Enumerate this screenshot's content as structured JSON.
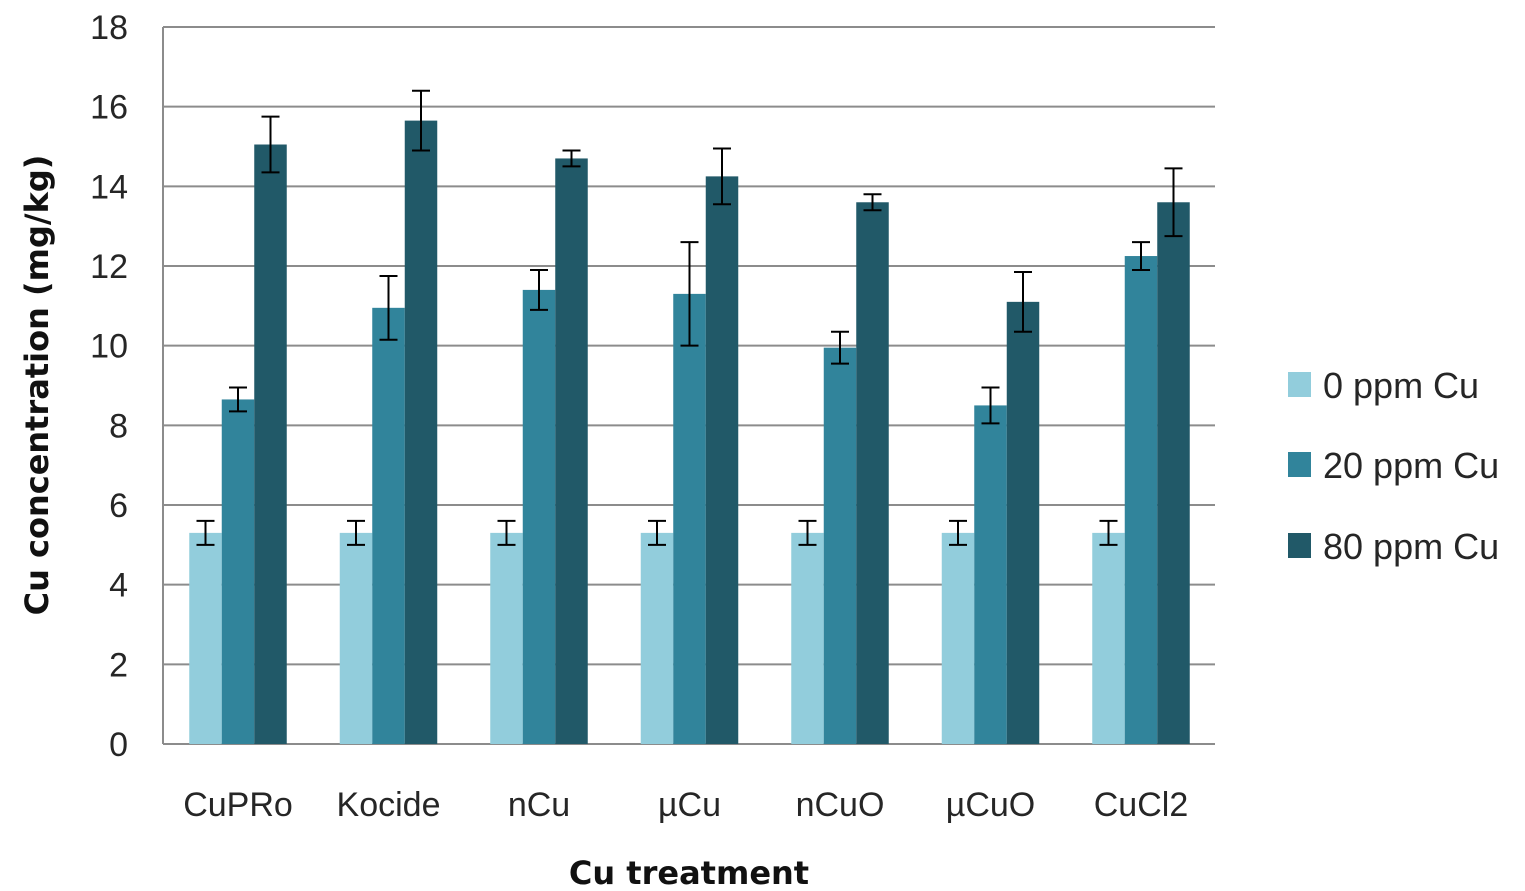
{
  "chart_data": {
    "type": "bar",
    "title": "",
    "xlabel": "Cu treatment",
    "ylabel": "Cu concentration (mg/kg)",
    "ylim": [
      0,
      18
    ],
    "yticks": [
      0,
      2,
      4,
      6,
      8,
      10,
      12,
      14,
      16,
      18
    ],
    "grid": true,
    "legend_position": "right",
    "categories": [
      "CuPRo",
      "Kocide",
      "nCu",
      "µCu",
      "nCuO",
      "µCuO",
      "CuCl2"
    ],
    "series": [
      {
        "name": "0 ppm Cu",
        "color": "#92cddc",
        "values": [
          5.3,
          5.3,
          5.3,
          5.3,
          5.3,
          5.3,
          5.3
        ],
        "errors": [
          0.3,
          0.3,
          0.3,
          0.3,
          0.3,
          0.3,
          0.3
        ]
      },
      {
        "name": "20 ppm Cu",
        "color": "#31849b",
        "values": [
          8.65,
          10.95,
          11.4,
          11.3,
          9.95,
          8.5,
          12.25
        ],
        "errors": [
          0.3,
          0.8,
          0.5,
          1.3,
          0.4,
          0.45,
          0.35
        ]
      },
      {
        "name": "80 ppm Cu",
        "color": "#215968",
        "values": [
          15.05,
          15.65,
          14.7,
          14.25,
          13.6,
          11.1,
          13.6
        ],
        "errors": [
          0.7,
          0.75,
          0.2,
          0.7,
          0.2,
          0.75,
          0.85
        ]
      }
    ]
  }
}
